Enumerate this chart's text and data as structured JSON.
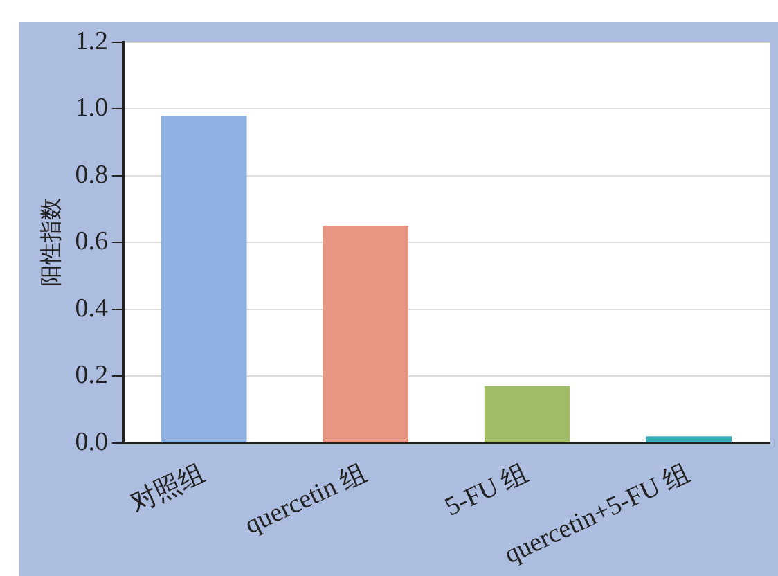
{
  "chart_data": {
    "type": "bar",
    "ylabel": "阳性指数",
    "categories": [
      "对照组",
      "quercetin 组",
      "5-FU 组",
      "quercetin+5-FU 组"
    ],
    "values": [
      0.98,
      0.65,
      0.17,
      0.02
    ],
    "colors": [
      "#8db1e0",
      "#e69683",
      "#a2bd68",
      "#40aab8"
    ],
    "ylim": [
      0,
      1.2
    ],
    "yticks": [
      "0.0",
      0.2,
      0.4,
      0.6,
      0.8,
      "1.0",
      1.2
    ],
    "grid": "y",
    "legend": false
  }
}
